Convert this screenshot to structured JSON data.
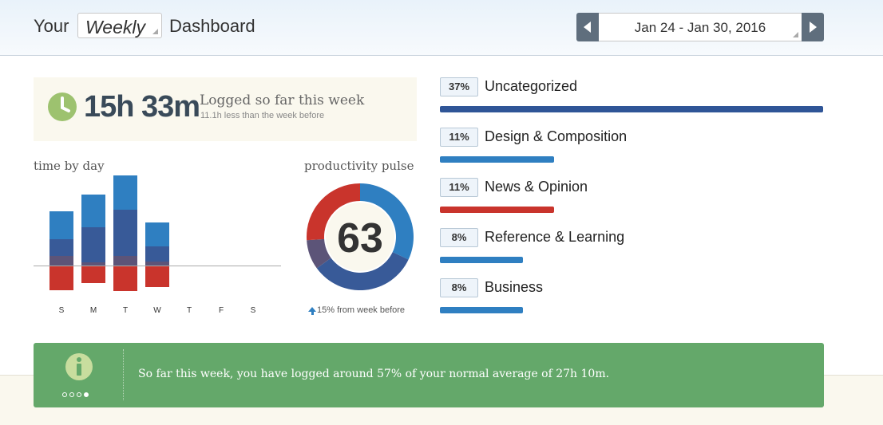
{
  "header": {
    "title_prefix": "Your",
    "period": "Weekly",
    "title_suffix": "Dashboard",
    "date_range": "Jan 24 - Jan 30, 2016"
  },
  "summary": {
    "total": "15h 33m",
    "label": "Logged so far this week",
    "comparison": "11.1h less than the week before"
  },
  "time_by_day": {
    "title": "time by day",
    "days": [
      "S",
      "M",
      "T",
      "W",
      "T",
      "F",
      "S"
    ]
  },
  "pulse": {
    "title": "productivity pulse",
    "score": "63",
    "note": "15% from week before"
  },
  "categories": [
    {
      "pct": "37%",
      "name": "Uncategorized",
      "value": 37,
      "color": "#2f5597"
    },
    {
      "pct": "11%",
      "name": "Design & Composition",
      "value": 11,
      "color": "#2f7fc1"
    },
    {
      "pct": "11%",
      "name": "News & Opinion",
      "value": 11,
      "color": "#c9342c"
    },
    {
      "pct": "8%",
      "name": "Reference & Learning",
      "value": 8,
      "color": "#2f7fc1"
    },
    {
      "pct": "8%",
      "name": "Business",
      "value": 8,
      "color": "#2f7fc1"
    }
  ],
  "banner": {
    "message": "So far this week, you have logged around 57% of your normal average of 27h 10m."
  },
  "chart_data": [
    {
      "type": "bar",
      "title": "time by day",
      "categories": [
        "S",
        "M",
        "T",
        "W",
        "T",
        "F",
        "S"
      ],
      "series": [
        {
          "values": [
            35,
            41,
            43,
            30,
            0,
            0,
            0
          ],
          "color": "#2f7fc1"
        },
        {
          "values": [
            21,
            44,
            58,
            19,
            0,
            0,
            0
          ],
          "color": "#385a98"
        },
        {
          "values": [
            12,
            4,
            12,
            5,
            0,
            0,
            0
          ],
          "color": "#5c5478"
        },
        {
          "values": [
            -30,
            -21,
            -31,
            -26,
            0,
            0,
            0
          ],
          "color": "#c9342c"
        }
      ]
    },
    {
      "type": "pie",
      "title": "productivity pulse",
      "center_label": "63",
      "slices": [
        {
          "value": 32,
          "color": "#2f7fc1"
        },
        {
          "value": 33,
          "color": "#385a98"
        },
        {
          "value": 9,
          "color": "#5c5478"
        },
        {
          "value": 26,
          "color": "#c9342c"
        }
      ]
    }
  ]
}
